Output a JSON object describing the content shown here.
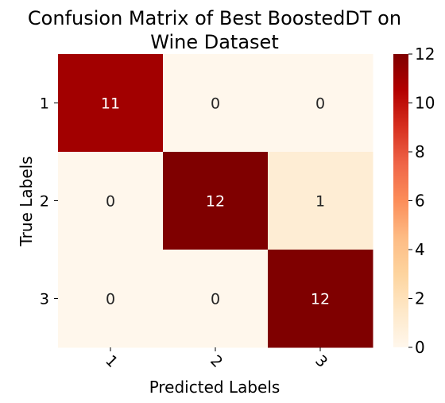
{
  "chart_data": {
    "type": "heatmap",
    "title_lines": [
      "Confusion Matrix of Best BoostedDT on",
      "Wine Dataset"
    ],
    "xlabel": "Predicted Labels",
    "ylabel": "True Labels",
    "x_categories": [
      "1",
      "2",
      "3"
    ],
    "y_categories": [
      "1",
      "2",
      "3"
    ],
    "values": [
      [
        11,
        0,
        0
      ],
      [
        0,
        12,
        1
      ],
      [
        0,
        0,
        12
      ]
    ],
    "colorbar": {
      "min": 0,
      "max": 12,
      "ticks": [
        0,
        2,
        4,
        6,
        8,
        10,
        12
      ],
      "colormap": "OrRd"
    },
    "x_tick_rotation_deg": 45
  }
}
